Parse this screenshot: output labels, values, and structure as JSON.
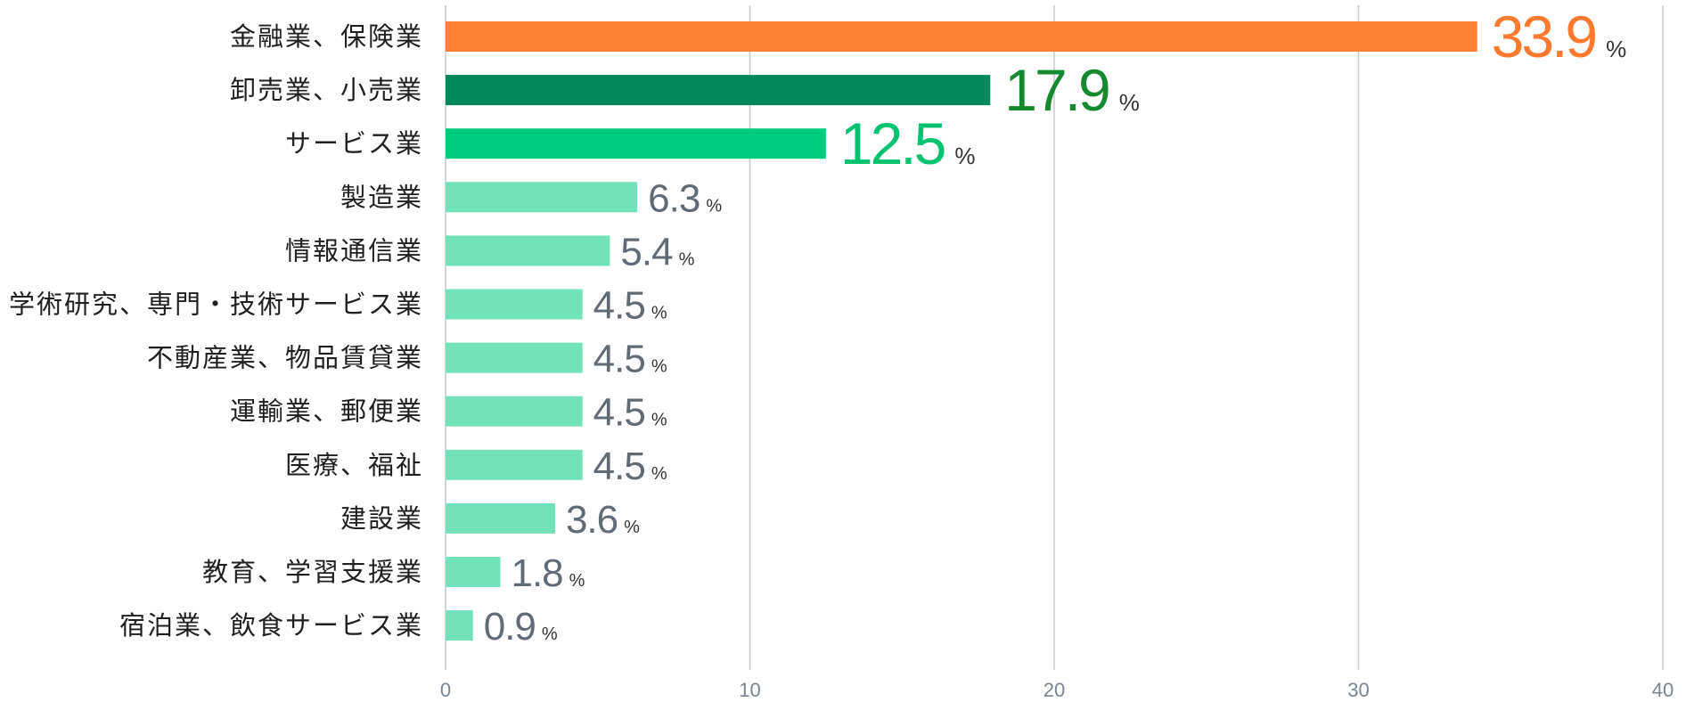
{
  "chart_data": {
    "type": "bar",
    "orientation": "horizontal",
    "categories": [
      "金融業、保険業",
      "卸売業、小売業",
      "サービス業",
      "製造業",
      "情報通信業",
      "学術研究、専門・技術サービス業",
      "不動産業、物品賃貸業",
      "運輸業、郵便業",
      "医療、福祉",
      "建設業",
      "教育、学習支援業",
      "宿泊業、飲食サービス業"
    ],
    "values": [
      33.9,
      17.9,
      12.5,
      6.3,
      5.4,
      4.5,
      4.5,
      4.5,
      4.5,
      3.6,
      1.8,
      0.9
    ],
    "value_labels": [
      "33.9",
      "17.9",
      "12.5",
      "6.3",
      "5.4",
      "4.5",
      "4.5",
      "4.5",
      "4.5",
      "3.6",
      "1.8",
      "0.9"
    ],
    "unit": "%",
    "xlim": [
      0,
      40
    ],
    "xticks": [
      0,
      10,
      20,
      30,
      40
    ],
    "xtick_labels": [
      "0",
      "10",
      "20",
      "30",
      "40"
    ],
    "grid": "vertical",
    "title": "",
    "xlabel": "",
    "ylabel": "",
    "bar_colors": [
      "#ff8133",
      "#00875a",
      "#00cc7f",
      "#72e3b8",
      "#72e3b8",
      "#72e3b8",
      "#72e3b8",
      "#72e3b8",
      "#72e3b8",
      "#72e3b8",
      "#72e3b8",
      "#72e3b8"
    ],
    "label_colors": [
      "#ff7a2e",
      "#15892f",
      "#00c26f",
      "#616b76",
      "#616b76",
      "#616b76",
      "#616b76",
      "#616b76",
      "#616b76",
      "#616b76",
      "#616b76",
      "#616b76"
    ],
    "unit_color": "#333333",
    "highlight_count": 3
  }
}
